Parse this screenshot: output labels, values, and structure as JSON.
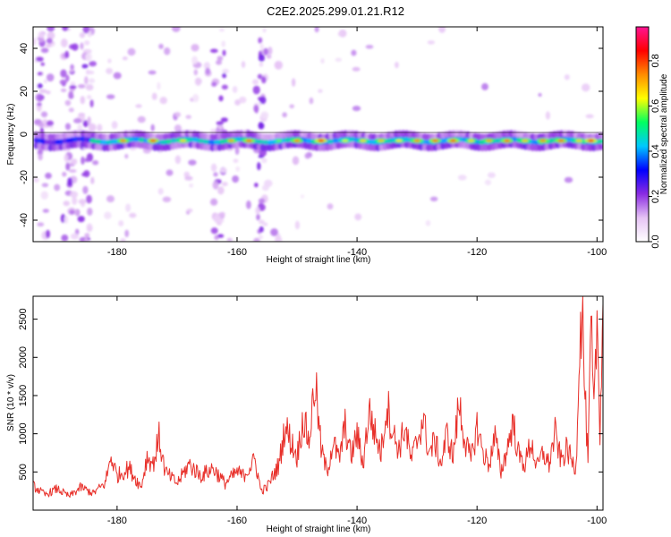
{
  "chart_data": [
    {
      "type": "heatmap",
      "title": "C2E2.2025.299.01.21.R12",
      "xlabel": "Height of straight line (km)",
      "ylabel": "Frequency (Hz)",
      "xlim": [
        -194,
        -99
      ],
      "ylim": [
        -50,
        50
      ],
      "x_ticks": [
        -180,
        -160,
        -140,
        -120,
        -100
      ],
      "y_ticks": [
        -40,
        -20,
        0,
        20,
        40
      ],
      "colorbar": {
        "label": "Normalized spectral amplitude",
        "range": [
          0,
          0.95
        ],
        "ticks": [
          0.0,
          0.2,
          0.4,
          0.6,
          0.8
        ],
        "tick_labels": [
          "0.0",
          "0.2",
          "0.4",
          "0.6",
          "0.8"
        ],
        "colors": [
          "#ffffff",
          "#e6c3f5",
          "#8a2be2",
          "#0000ff",
          "#00c8ff",
          "#00ff60",
          "#ffff00",
          "#ff8c00",
          "#ff0000",
          "#ff1493"
        ]
      },
      "band": {
        "frequency_center": -3,
        "peak_centers_km": [
          -179,
          -174,
          -169,
          -161,
          -158,
          -153,
          -150,
          -146,
          -142,
          -139,
          -136,
          -133,
          -130,
          -127,
          -124,
          -121,
          -118,
          -115,
          -112,
          -109,
          -106,
          -103,
          -101
        ],
        "peak_amplitudes": [
          0.78,
          0.82,
          0.7,
          0.75,
          0.8,
          0.6,
          0.78,
          0.85,
          0.65,
          0.7,
          0.72,
          0.68,
          0.78,
          0.8,
          0.82,
          0.7,
          0.75,
          0.8,
          0.72,
          0.78,
          0.8,
          0.7,
          0.85
        ]
      },
      "noise_columns_km": [
        -192,
        -188,
        -185,
        -163,
        -156
      ]
    },
    {
      "type": "line",
      "title": "",
      "xlabel": "Height of straight line (km)",
      "ylabel": "SNR (10 * v/v)",
      "xlim": [
        -194,
        -99
      ],
      "ylim": [
        0,
        2800
      ],
      "x_ticks": [
        -180,
        -160,
        -140,
        -120,
        -100
      ],
      "y_ticks": [
        500,
        1000,
        1500,
        2000,
        2500
      ],
      "series": [
        {
          "name": "SNR",
          "color": "#e8302a",
          "x": [
            -194,
            -192,
            -190,
            -188,
            -186,
            -184,
            -182,
            -181,
            -180,
            -178,
            -176,
            -175,
            -174,
            -173,
            -172,
            -170,
            -168,
            -166,
            -164,
            -162,
            -160,
            -159,
            -157,
            -156,
            -155,
            -153,
            -152,
            -150,
            -149,
            -148,
            -147,
            -146,
            -145,
            -144,
            -143,
            -142,
            -141,
            -140,
            -139,
            -138,
            -137,
            -136,
            -135,
            -134,
            -133,
            -132,
            -131,
            -130,
            -129,
            -128,
            -127,
            -126,
            -125,
            -124,
            -123,
            -122,
            -121,
            -120,
            -119,
            -118,
            -117,
            -116,
            -115,
            -114,
            -113,
            -112,
            -111,
            -110,
            -109,
            -108,
            -107,
            -106,
            -105,
            -104,
            -103.5,
            -103,
            -102.5,
            -102,
            -101.5,
            -101,
            -100.5,
            -100,
            -99.5,
            -99
          ],
          "values": [
            320,
            200,
            280,
            180,
            300,
            220,
            350,
            700,
            450,
            550,
            300,
            700,
            600,
            950,
            500,
            350,
            600,
            450,
            550,
            350,
            500,
            450,
            650,
            250,
            300,
            600,
            1100,
            700,
            1200,
            900,
            1700,
            800,
            500,
            900,
            650,
            1100,
            700,
            1000,
            600,
            1300,
            1000,
            750,
            1400,
            1000,
            800,
            1100,
            650,
            900,
            1200,
            750,
            900,
            600,
            1000,
            700,
            1400,
            900,
            650,
            1100,
            750,
            600,
            950,
            500,
            800,
            1150,
            700,
            600,
            900,
            550,
            750,
            600,
            1000,
            650,
            800,
            600,
            550,
            2000,
            2700,
            1500,
            600,
            2400,
            1200,
            2500,
            1100,
            2700
          ]
        }
      ]
    }
  ]
}
